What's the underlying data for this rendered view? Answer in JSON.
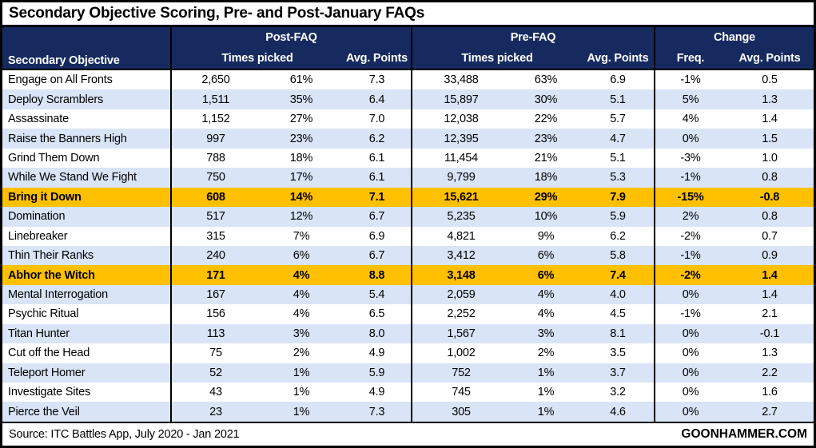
{
  "title": "Secondary Objective Scoring, Pre- and Post-January FAQs",
  "header": {
    "objective": "Secondary Objective",
    "post_group": "Post-FAQ",
    "pre_group": "Pre-FAQ",
    "change_group": "Change",
    "times_picked": "Times picked",
    "avg_points": "Avg. Points",
    "freq": "Freq."
  },
  "footer": {
    "source": "Source: ITC Battles App, July 2020 - Jan 2021",
    "brand": "GOONHAMMER.COM"
  },
  "colors": {
    "header_bg": "#162a60",
    "row_alt": "#d9e4f7",
    "highlight": "#ffc000",
    "border": "#000000"
  },
  "chart_data": {
    "type": "table",
    "title": "Secondary Objective Scoring, Pre- and Post-January FAQs",
    "column_groups": [
      "Post-FAQ",
      "Pre-FAQ",
      "Change"
    ],
    "columns": [
      "Secondary Objective",
      "Post-FAQ Times picked",
      "Post-FAQ Times picked %",
      "Post-FAQ Avg. Points",
      "Pre-FAQ Times picked",
      "Pre-FAQ Times picked %",
      "Pre-FAQ Avg. Points",
      "Change Freq.",
      "Change Avg. Points"
    ],
    "highlighted_rows": [
      "Bring it Down",
      "Abhor the Witch"
    ],
    "rows": [
      {
        "objective": "Engage on All Fronts",
        "post_times": "2,650",
        "post_share": "61%",
        "post_avg": "7.3",
        "pre_times": "33,488",
        "pre_share": "63%",
        "pre_avg": "6.9",
        "change_freq": "-1%",
        "change_avg": "0.5",
        "highlight": false
      },
      {
        "objective": "Deploy Scramblers",
        "post_times": "1,511",
        "post_share": "35%",
        "post_avg": "6.4",
        "pre_times": "15,897",
        "pre_share": "30%",
        "pre_avg": "5.1",
        "change_freq": "5%",
        "change_avg": "1.3",
        "highlight": false
      },
      {
        "objective": "Assassinate",
        "post_times": "1,152",
        "post_share": "27%",
        "post_avg": "7.0",
        "pre_times": "12,038",
        "pre_share": "22%",
        "pre_avg": "5.7",
        "change_freq": "4%",
        "change_avg": "1.4",
        "highlight": false
      },
      {
        "objective": "Raise the Banners High",
        "post_times": "997",
        "post_share": "23%",
        "post_avg": "6.2",
        "pre_times": "12,395",
        "pre_share": "23%",
        "pre_avg": "4.7",
        "change_freq": "0%",
        "change_avg": "1.5",
        "highlight": false
      },
      {
        "objective": "Grind Them Down",
        "post_times": "788",
        "post_share": "18%",
        "post_avg": "6.1",
        "pre_times": "11,454",
        "pre_share": "21%",
        "pre_avg": "5.1",
        "change_freq": "-3%",
        "change_avg": "1.0",
        "highlight": false
      },
      {
        "objective": "While We Stand We Fight",
        "post_times": "750",
        "post_share": "17%",
        "post_avg": "6.1",
        "pre_times": "9,799",
        "pre_share": "18%",
        "pre_avg": "5.3",
        "change_freq": "-1%",
        "change_avg": "0.8",
        "highlight": false
      },
      {
        "objective": "Bring it Down",
        "post_times": "608",
        "post_share": "14%",
        "post_avg": "7.1",
        "pre_times": "15,621",
        "pre_share": "29%",
        "pre_avg": "7.9",
        "change_freq": "-15%",
        "change_avg": "-0.8",
        "highlight": true
      },
      {
        "objective": "Domination",
        "post_times": "517",
        "post_share": "12%",
        "post_avg": "6.7",
        "pre_times": "5,235",
        "pre_share": "10%",
        "pre_avg": "5.9",
        "change_freq": "2%",
        "change_avg": "0.8",
        "highlight": false
      },
      {
        "objective": "Linebreaker",
        "post_times": "315",
        "post_share": "7%",
        "post_avg": "6.9",
        "pre_times": "4,821",
        "pre_share": "9%",
        "pre_avg": "6.2",
        "change_freq": "-2%",
        "change_avg": "0.7",
        "highlight": false
      },
      {
        "objective": "Thin Their Ranks",
        "post_times": "240",
        "post_share": "6%",
        "post_avg": "6.7",
        "pre_times": "3,412",
        "pre_share": "6%",
        "pre_avg": "5.8",
        "change_freq": "-1%",
        "change_avg": "0.9",
        "highlight": false
      },
      {
        "objective": "Abhor the Witch",
        "post_times": "171",
        "post_share": "4%",
        "post_avg": "8.8",
        "pre_times": "3,148",
        "pre_share": "6%",
        "pre_avg": "7.4",
        "change_freq": "-2%",
        "change_avg": "1.4",
        "highlight": true
      },
      {
        "objective": "Mental Interrogation",
        "post_times": "167",
        "post_share": "4%",
        "post_avg": "5.4",
        "pre_times": "2,059",
        "pre_share": "4%",
        "pre_avg": "4.0",
        "change_freq": "0%",
        "change_avg": "1.4",
        "highlight": false
      },
      {
        "objective": "Psychic Ritual",
        "post_times": "156",
        "post_share": "4%",
        "post_avg": "6.5",
        "pre_times": "2,252",
        "pre_share": "4%",
        "pre_avg": "4.5",
        "change_freq": "-1%",
        "change_avg": "2.1",
        "highlight": false
      },
      {
        "objective": "Titan Hunter",
        "post_times": "113",
        "post_share": "3%",
        "post_avg": "8.0",
        "pre_times": "1,567",
        "pre_share": "3%",
        "pre_avg": "8.1",
        "change_freq": "0%",
        "change_avg": "-0.1",
        "highlight": false
      },
      {
        "objective": "Cut off the Head",
        "post_times": "75",
        "post_share": "2%",
        "post_avg": "4.9",
        "pre_times": "1,002",
        "pre_share": "2%",
        "pre_avg": "3.5",
        "change_freq": "0%",
        "change_avg": "1.3",
        "highlight": false
      },
      {
        "objective": "Teleport Homer",
        "post_times": "52",
        "post_share": "1%",
        "post_avg": "5.9",
        "pre_times": "752",
        "pre_share": "1%",
        "pre_avg": "3.7",
        "change_freq": "0%",
        "change_avg": "2.2",
        "highlight": false
      },
      {
        "objective": "Investigate Sites",
        "post_times": "43",
        "post_share": "1%",
        "post_avg": "4.9",
        "pre_times": "745",
        "pre_share": "1%",
        "pre_avg": "3.2",
        "change_freq": "0%",
        "change_avg": "1.6",
        "highlight": false
      },
      {
        "objective": "Pierce the Veil",
        "post_times": "23",
        "post_share": "1%",
        "post_avg": "7.3",
        "pre_times": "305",
        "pre_share": "1%",
        "pre_avg": "4.6",
        "change_freq": "0%",
        "change_avg": "2.7",
        "highlight": false
      }
    ],
    "source": "ITC Battles App, July 2020 - Jan 2021"
  }
}
